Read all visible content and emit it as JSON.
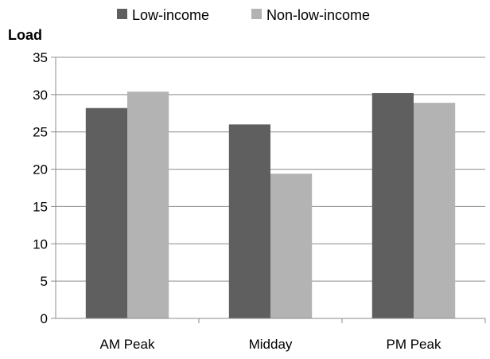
{
  "chart_data": {
    "type": "bar",
    "ylabel": "Load",
    "categories": [
      "AM Peak",
      "Midday",
      "PM Peak"
    ],
    "series": [
      {
        "name": "Low-income",
        "values": [
          28.2,
          26.0,
          30.2
        ],
        "color": "#5f5f5f"
      },
      {
        "name": "Non-low-income",
        "values": [
          30.4,
          19.4,
          28.9
        ],
        "color": "#b3b3b3"
      }
    ],
    "ylim": [
      0,
      35
    ],
    "yticks": [
      "0",
      "5",
      "10",
      "15",
      "20",
      "25",
      "30",
      "35"
    ],
    "grid": true,
    "legend_position": "top"
  }
}
